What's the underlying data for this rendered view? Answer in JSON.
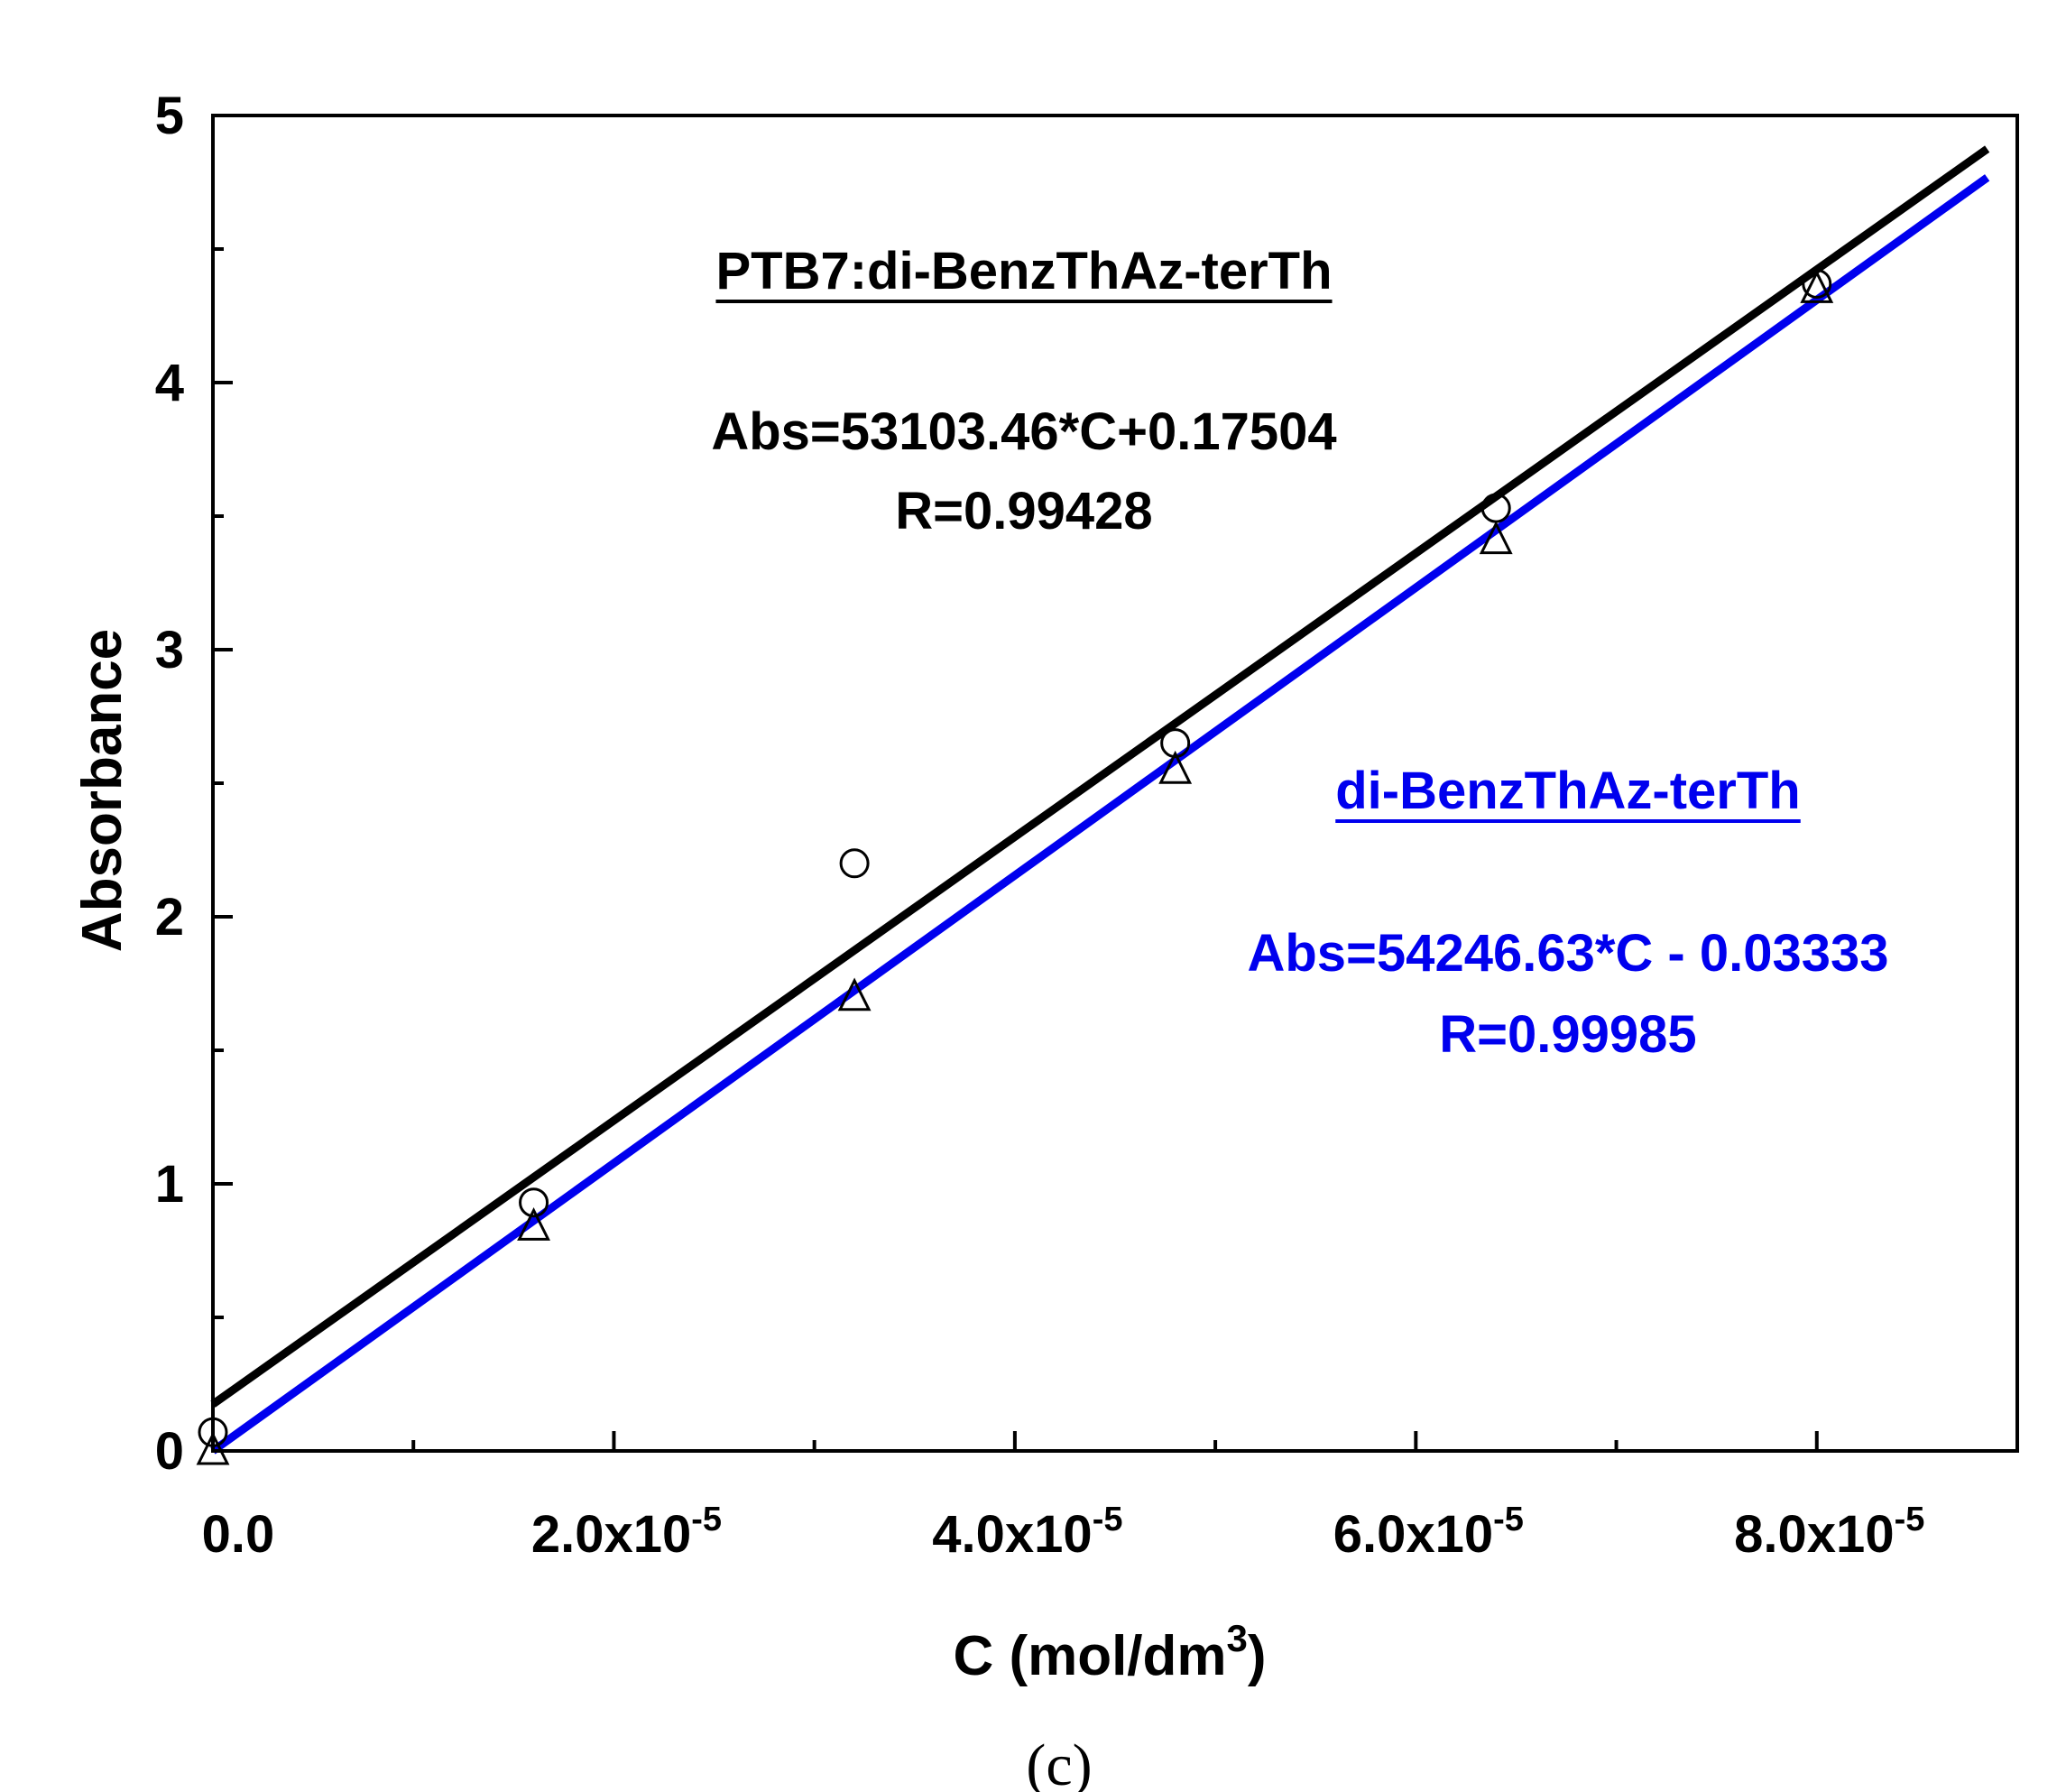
{
  "chart_data": {
    "type": "scatter",
    "xlabel": "C (mol/dm",
    "xlabel_sup": "3",
    "xlabel_close": ")",
    "ylabel": "Absorbance",
    "xlim": [
      0,
      9e-05
    ],
    "ylim": [
      0,
      5
    ],
    "x_major_ticks": [
      0,
      2e-05,
      4e-05,
      6e-05,
      8e-05
    ],
    "x_minor_ticks": [
      1e-05,
      3e-05,
      5e-05,
      7e-05
    ],
    "x_tick_labels": [
      {
        "main": "0.0",
        "sup": ""
      },
      {
        "main": "2.0x10",
        "sup": "-5"
      },
      {
        "main": "4.0x10",
        "sup": "-5"
      },
      {
        "main": "6.0x10",
        "sup": "-5"
      },
      {
        "main": "8.0x10",
        "sup": "-5"
      }
    ],
    "y_major_ticks": [
      0,
      1,
      2,
      3,
      4,
      5
    ],
    "y_minor_ticks": [
      0.5,
      1.5,
      2.5,
      3.5,
      4.5
    ],
    "y_tick_labels": [
      "0",
      "1",
      "2",
      "3",
      "4",
      "5"
    ],
    "grid": false,
    "series": [
      {
        "name": "PTB7:di-BenzThAz-terTh",
        "marker": "circle",
        "color": "#000000",
        "x": [
          0,
          1.6e-05,
          3.2e-05,
          4.8e-05,
          6.4e-05,
          8e-05
        ],
        "y": [
          0.07,
          0.93,
          2.2,
          2.65,
          3.53,
          4.37
        ],
        "fit": {
          "slope": 53103.46,
          "intercept": 0.17504,
          "x_range": [
            0,
            8.85e-05
          ]
        },
        "equation": "Abs=53103.46*C+0.17504",
        "r_text": "R=0.99428"
      },
      {
        "name": "di-BenzThAz-terTh",
        "marker": "triangle",
        "color": "#0000ee",
        "x": [
          0,
          1.6e-05,
          3.2e-05,
          4.8e-05,
          6.4e-05,
          8e-05
        ],
        "y": [
          0.0,
          0.84,
          1.7,
          2.55,
          3.41,
          4.35
        ],
        "fit": {
          "slope": 54246.63,
          "intercept": -0.03333,
          "x_range": [
            0,
            8.85e-05
          ]
        },
        "equation": "Abs=54246.63*C - 0.03333",
        "r_text": "R=0.99985"
      }
    ]
  },
  "caption": "(c)"
}
